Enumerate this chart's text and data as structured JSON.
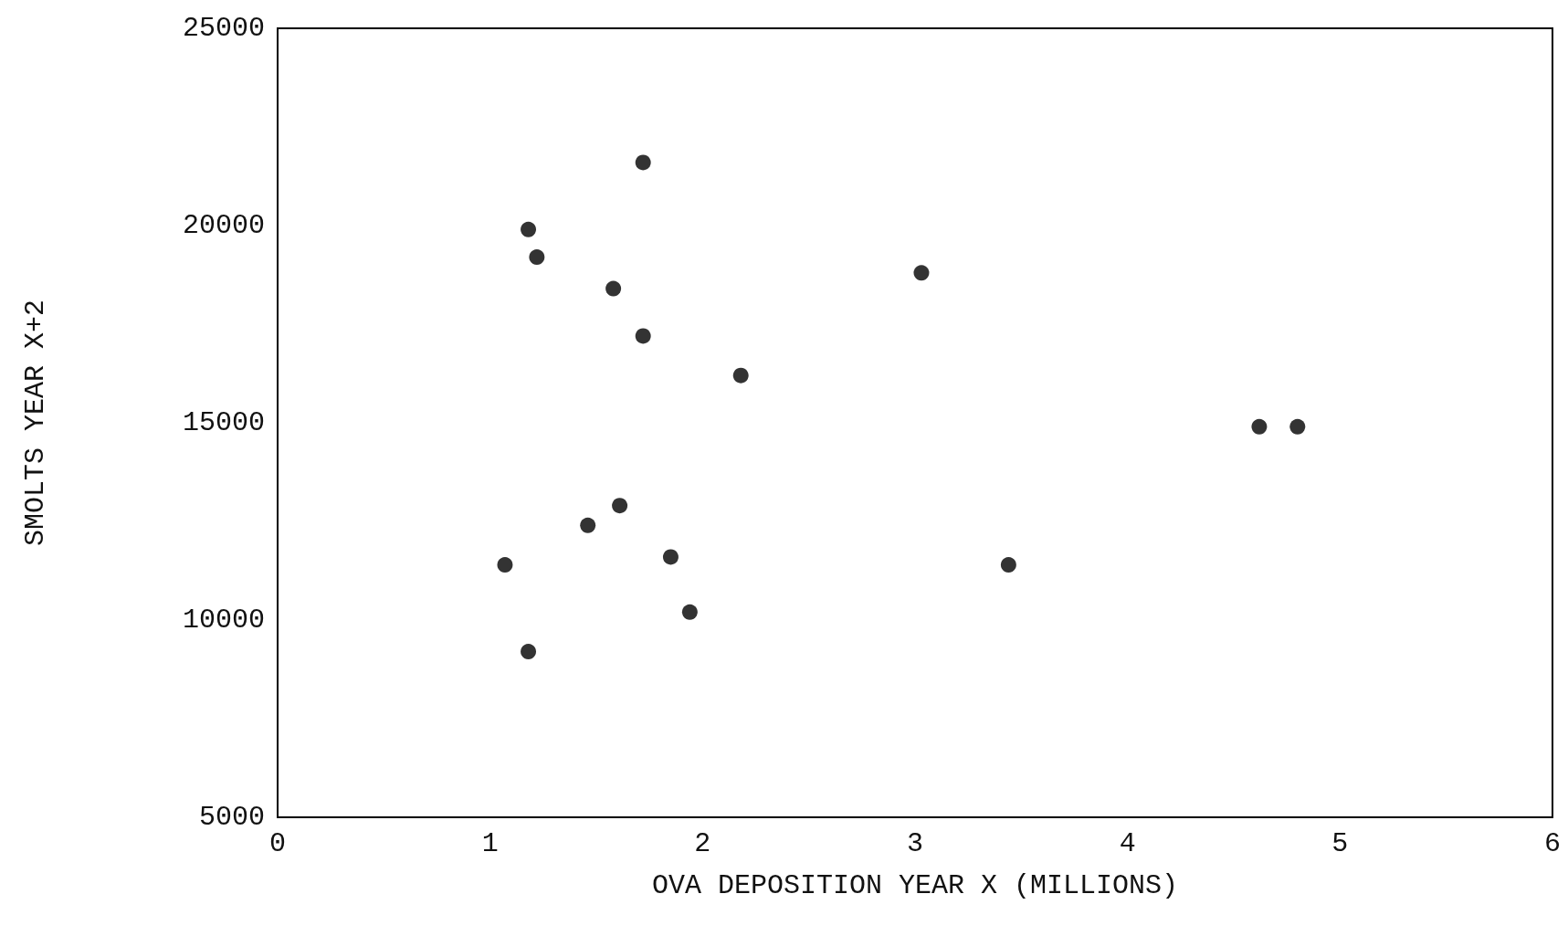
{
  "chart_data": {
    "type": "scatter",
    "xlabel": "OVA DEPOSITION YEAR X (MILLIONS)",
    "ylabel": "SMOLTS YEAR X+2",
    "x": [
      1.07,
      1.18,
      1.18,
      1.22,
      1.46,
      1.58,
      1.61,
      1.72,
      1.72,
      1.85,
      1.94,
      2.18,
      3.03,
      3.44,
      4.62,
      4.8
    ],
    "series": [
      {
        "color": "#000000",
        "values": [
          11400,
          9200,
          19900,
          19200,
          12400,
          18400,
          12900,
          21600,
          17200,
          11600,
          10200,
          16200,
          18800,
          11400,
          14900,
          14900
        ]
      }
    ],
    "xlim": [
      0,
      6
    ],
    "xticks": [
      0,
      1,
      2,
      3,
      4,
      5,
      6
    ],
    "ylim": [
      5000,
      25000
    ],
    "yticks": [
      5000,
      10000,
      15000,
      20000,
      25000
    ],
    "grid": false,
    "marker": "circle"
  }
}
